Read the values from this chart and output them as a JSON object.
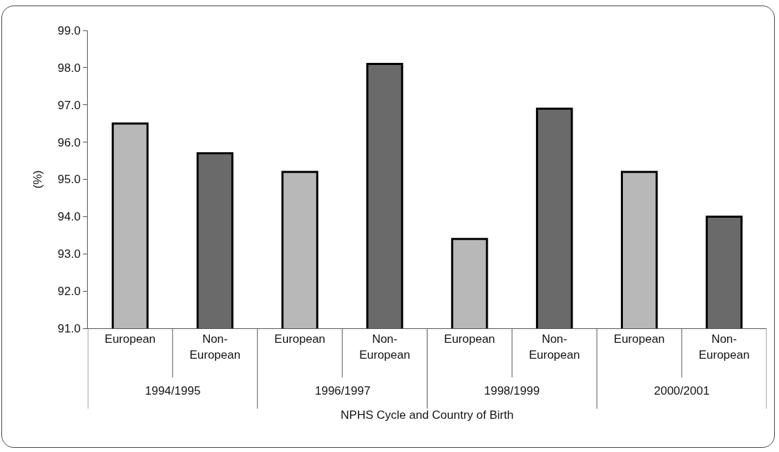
{
  "chart_data": {
    "type": "bar",
    "xlabel": "NPHS Cycle and Country of Birth",
    "ylabel": "(%)",
    "categories": [
      "European",
      "Non-European",
      "European",
      "Non-European",
      "European",
      "Non-European",
      "European",
      "Non-European"
    ],
    "values": [
      96.5,
      95.7,
      95.2,
      98.1,
      93.4,
      96.9,
      95.2,
      94.0
    ],
    "colors": [
      "#b8b8b8",
      "#6a6a6a",
      "#b8b8b8",
      "#6a6a6a",
      "#b8b8b8",
      "#6a6a6a",
      "#b8b8b8",
      "#6a6a6a"
    ],
    "annotations": [
      "1994/1995",
      "1996/1997",
      "1998/1999",
      "2000/2001"
    ],
    "ylim": [
      91,
      99
    ],
    "yticks": [
      {
        "value": 91,
        "label": "91.0"
      },
      {
        "value": 92,
        "label": "92.0"
      },
      {
        "value": 93,
        "label": "93.0"
      },
      {
        "value": 94,
        "label": "94.0"
      },
      {
        "value": 95,
        "label": "95.0"
      },
      {
        "value": 96,
        "label": "96.0"
      },
      {
        "value": 97,
        "label": "97.0"
      },
      {
        "value": 98,
        "label": "98.0"
      },
      {
        "value": 99,
        "label": "99.0"
      }
    ],
    "grid": false
  }
}
